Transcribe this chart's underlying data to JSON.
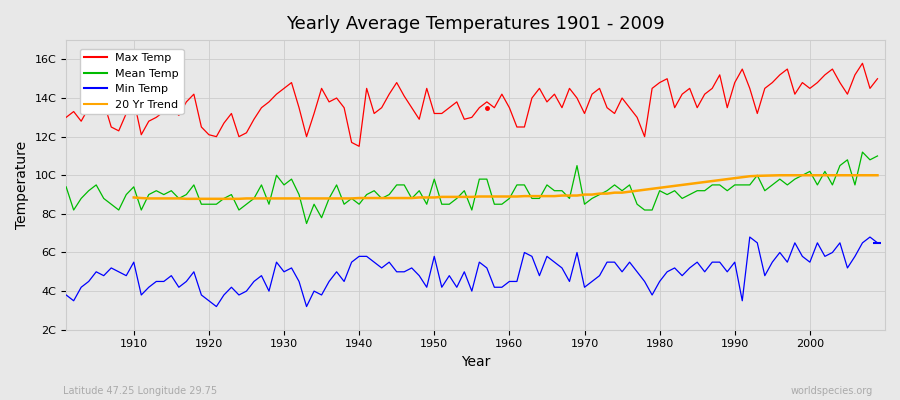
{
  "title": "Yearly Average Temperatures 1901 - 2009",
  "xlabel": "Year",
  "ylabel": "Temperature",
  "x_start": 1901,
  "x_end": 2009,
  "yticks": [
    2,
    4,
    6,
    8,
    10,
    12,
    14,
    16
  ],
  "ytick_labels": [
    "2C",
    "4C",
    "6C",
    "8C",
    "10C",
    "12C",
    "14C",
    "16C"
  ],
  "ylim": [
    2,
    17
  ],
  "xlim": [
    1901,
    2010
  ],
  "bg_color": "#e8e8e8",
  "grid_color": "#cccccc",
  "lat_lon_text": "Latitude 47.25 Longitude 29.75",
  "watermark": "worldspecies.org",
  "legend_items": [
    "Max Temp",
    "Mean Temp",
    "Min Temp",
    "20 Yr Trend"
  ],
  "legend_colors": [
    "#ff0000",
    "#00bb00",
    "#0000ff",
    "#ffa500"
  ],
  "max_temp": [
    13.0,
    13.3,
    12.8,
    13.5,
    14.0,
    13.8,
    12.5,
    12.3,
    13.2,
    13.9,
    12.1,
    12.8,
    13.0,
    13.3,
    13.5,
    13.1,
    13.8,
    14.2,
    12.5,
    12.1,
    12.0,
    12.7,
    13.2,
    12.0,
    12.2,
    12.9,
    13.5,
    13.8,
    14.2,
    14.5,
    14.8,
    13.5,
    12.0,
    13.2,
    14.5,
    13.8,
    14.0,
    13.5,
    11.7,
    11.5,
    14.5,
    13.2,
    13.5,
    14.2,
    14.8,
    14.1,
    13.5,
    12.9,
    14.5,
    13.2,
    13.2,
    13.5,
    13.8,
    12.9,
    13.0,
    13.5,
    13.8,
    13.5,
    14.2,
    13.5,
    12.5,
    12.5,
    14.0,
    14.5,
    13.8,
    14.2,
    13.5,
    14.5,
    14.0,
    13.2,
    14.2,
    14.5,
    13.5,
    13.2,
    14.0,
    13.5,
    13.0,
    12.0,
    14.5,
    14.8,
    15.0,
    13.5,
    14.2,
    14.5,
    13.5,
    14.2,
    14.5,
    15.2,
    13.5,
    14.8,
    15.5,
    14.5,
    13.2,
    14.5,
    14.8,
    15.2,
    15.5,
    14.2,
    14.8,
    14.5,
    14.8,
    15.2,
    15.5,
    14.8,
    14.2,
    15.2,
    15.8,
    14.5,
    15.0
  ],
  "mean_temp": [
    9.4,
    8.2,
    8.8,
    9.2,
    9.5,
    8.8,
    8.5,
    8.2,
    9.0,
    9.4,
    8.2,
    9.0,
    9.2,
    9.0,
    9.2,
    8.8,
    9.0,
    9.5,
    8.5,
    8.5,
    8.5,
    8.8,
    9.0,
    8.2,
    8.5,
    8.8,
    9.5,
    8.5,
    10.0,
    9.5,
    9.8,
    9.0,
    7.5,
    8.5,
    7.8,
    8.8,
    9.5,
    8.5,
    8.8,
    8.5,
    9.0,
    9.2,
    8.8,
    9.0,
    9.5,
    9.5,
    8.8,
    9.2,
    8.5,
    9.8,
    8.5,
    8.5,
    8.8,
    9.2,
    8.2,
    9.8,
    9.8,
    8.5,
    8.5,
    8.8,
    9.5,
    9.5,
    8.8,
    8.8,
    9.5,
    9.2,
    9.2,
    8.8,
    10.5,
    8.5,
    8.8,
    9.0,
    9.2,
    9.5,
    9.2,
    9.5,
    8.5,
    8.2,
    8.2,
    9.2,
    9.0,
    9.2,
    8.8,
    9.0,
    9.2,
    9.2,
    9.5,
    9.5,
    9.2,
    9.5,
    9.5,
    9.5,
    10.0,
    9.2,
    9.5,
    9.8,
    9.5,
    9.8,
    10.0,
    10.2,
    9.5,
    10.2,
    9.5,
    10.5,
    10.8,
    9.5,
    11.2,
    10.8,
    11.0
  ],
  "min_temp": [
    3.8,
    3.5,
    4.2,
    4.5,
    5.0,
    4.8,
    5.2,
    5.0,
    4.8,
    5.5,
    3.8,
    4.2,
    4.5,
    4.5,
    4.8,
    4.2,
    4.5,
    5.0,
    3.8,
    3.5,
    3.2,
    3.8,
    4.2,
    3.8,
    4.0,
    4.5,
    4.8,
    4.0,
    5.5,
    5.0,
    5.2,
    4.5,
    3.2,
    4.0,
    3.8,
    4.5,
    5.0,
    4.5,
    5.5,
    5.8,
    5.8,
    5.5,
    5.2,
    5.5,
    5.0,
    5.0,
    5.2,
    4.8,
    4.2,
    5.8,
    4.2,
    4.8,
    4.2,
    5.0,
    4.0,
    5.5,
    5.2,
    4.2,
    4.2,
    4.5,
    4.5,
    6.0,
    5.8,
    4.8,
    5.8,
    5.5,
    5.2,
    4.5,
    6.0,
    4.2,
    4.5,
    4.8,
    5.5,
    5.5,
    5.0,
    5.5,
    5.0,
    4.5,
    3.8,
    4.5,
    5.0,
    5.2,
    4.8,
    5.2,
    5.5,
    5.0,
    5.5,
    5.5,
    5.0,
    5.5,
    3.5,
    6.8,
    6.5,
    4.8,
    5.5,
    6.0,
    5.5,
    6.5,
    5.8,
    5.5,
    6.5,
    5.8,
    6.0,
    6.5,
    5.2,
    5.8,
    6.5,
    6.8,
    6.5
  ],
  "trend_start_year": 1910,
  "trend": [
    8.85,
    8.82,
    8.8,
    8.8,
    8.8,
    8.8,
    8.8,
    8.78,
    8.78,
    8.78,
    8.78,
    8.78,
    8.78,
    8.78,
    8.78,
    8.8,
    8.8,
    8.8,
    8.8,
    8.8,
    8.8,
    8.8,
    8.8,
    8.8,
    8.8,
    8.8,
    8.8,
    8.8,
    8.8,
    8.8,
    8.82,
    8.82,
    8.82,
    8.82,
    8.82,
    8.82,
    8.82,
    8.82,
    8.85,
    8.85,
    8.85,
    8.88,
    8.88,
    8.88,
    8.88,
    8.88,
    8.9,
    8.9,
    8.9,
    8.9,
    8.9,
    8.9,
    8.92,
    8.92,
    8.92,
    8.92,
    8.92,
    8.95,
    8.95,
    8.95,
    9.0,
    9.0,
    9.05,
    9.05,
    9.1,
    9.1,
    9.15,
    9.2,
    9.25,
    9.3,
    9.35,
    9.4,
    9.45,
    9.5,
    9.55,
    9.6,
    9.65,
    9.7,
    9.75,
    9.8,
    9.85,
    9.9,
    9.95,
    9.97,
    9.98,
    9.99,
    10.0,
    10.0,
    10.0,
    10.0,
    10.0,
    10.0,
    10.0,
    10.0,
    10.0,
    10.0,
    10.0,
    10.0,
    10.0,
    10.0
  ]
}
